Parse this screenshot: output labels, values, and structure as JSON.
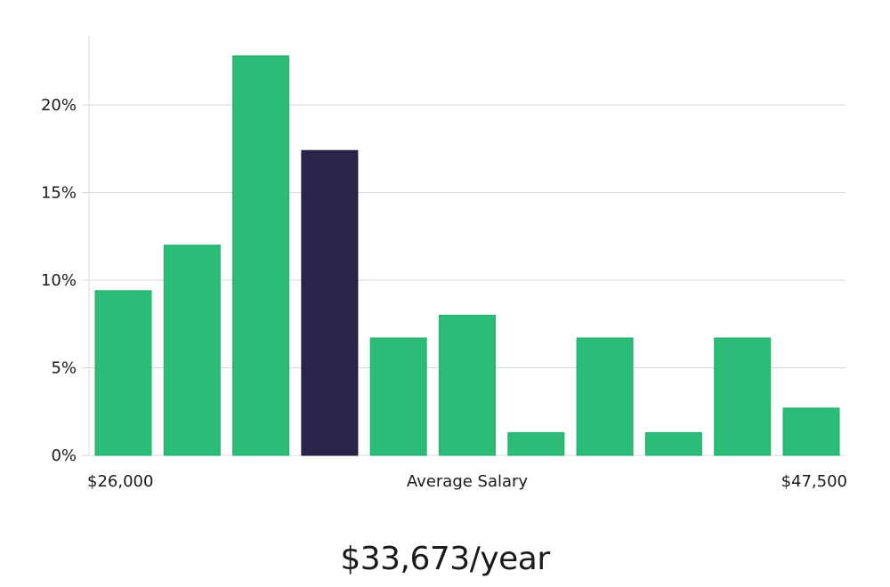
{
  "chart_data": {
    "type": "bar",
    "title": "",
    "xlabel": "Average Salary",
    "ylabel": "",
    "x_start_label": "$26,000",
    "x_end_label": "$47,500",
    "ylim": [
      0,
      24
    ],
    "yticks": [
      0,
      5,
      10,
      15,
      20
    ],
    "ytick_labels": [
      "0%",
      "5%",
      "10%",
      "15%",
      "20%"
    ],
    "grid": true,
    "values": [
      9.4,
      12.0,
      22.8,
      17.4,
      6.7,
      8.0,
      1.3,
      6.7,
      1.3,
      6.7,
      2.7
    ],
    "highlight_index": 3,
    "colors": {
      "bar": "#2bbd77",
      "highlight": "#29254a",
      "grid": "#d9d9d9",
      "axis": "#d9d9d9"
    }
  },
  "salary": {
    "text": "$33,673/year"
  }
}
